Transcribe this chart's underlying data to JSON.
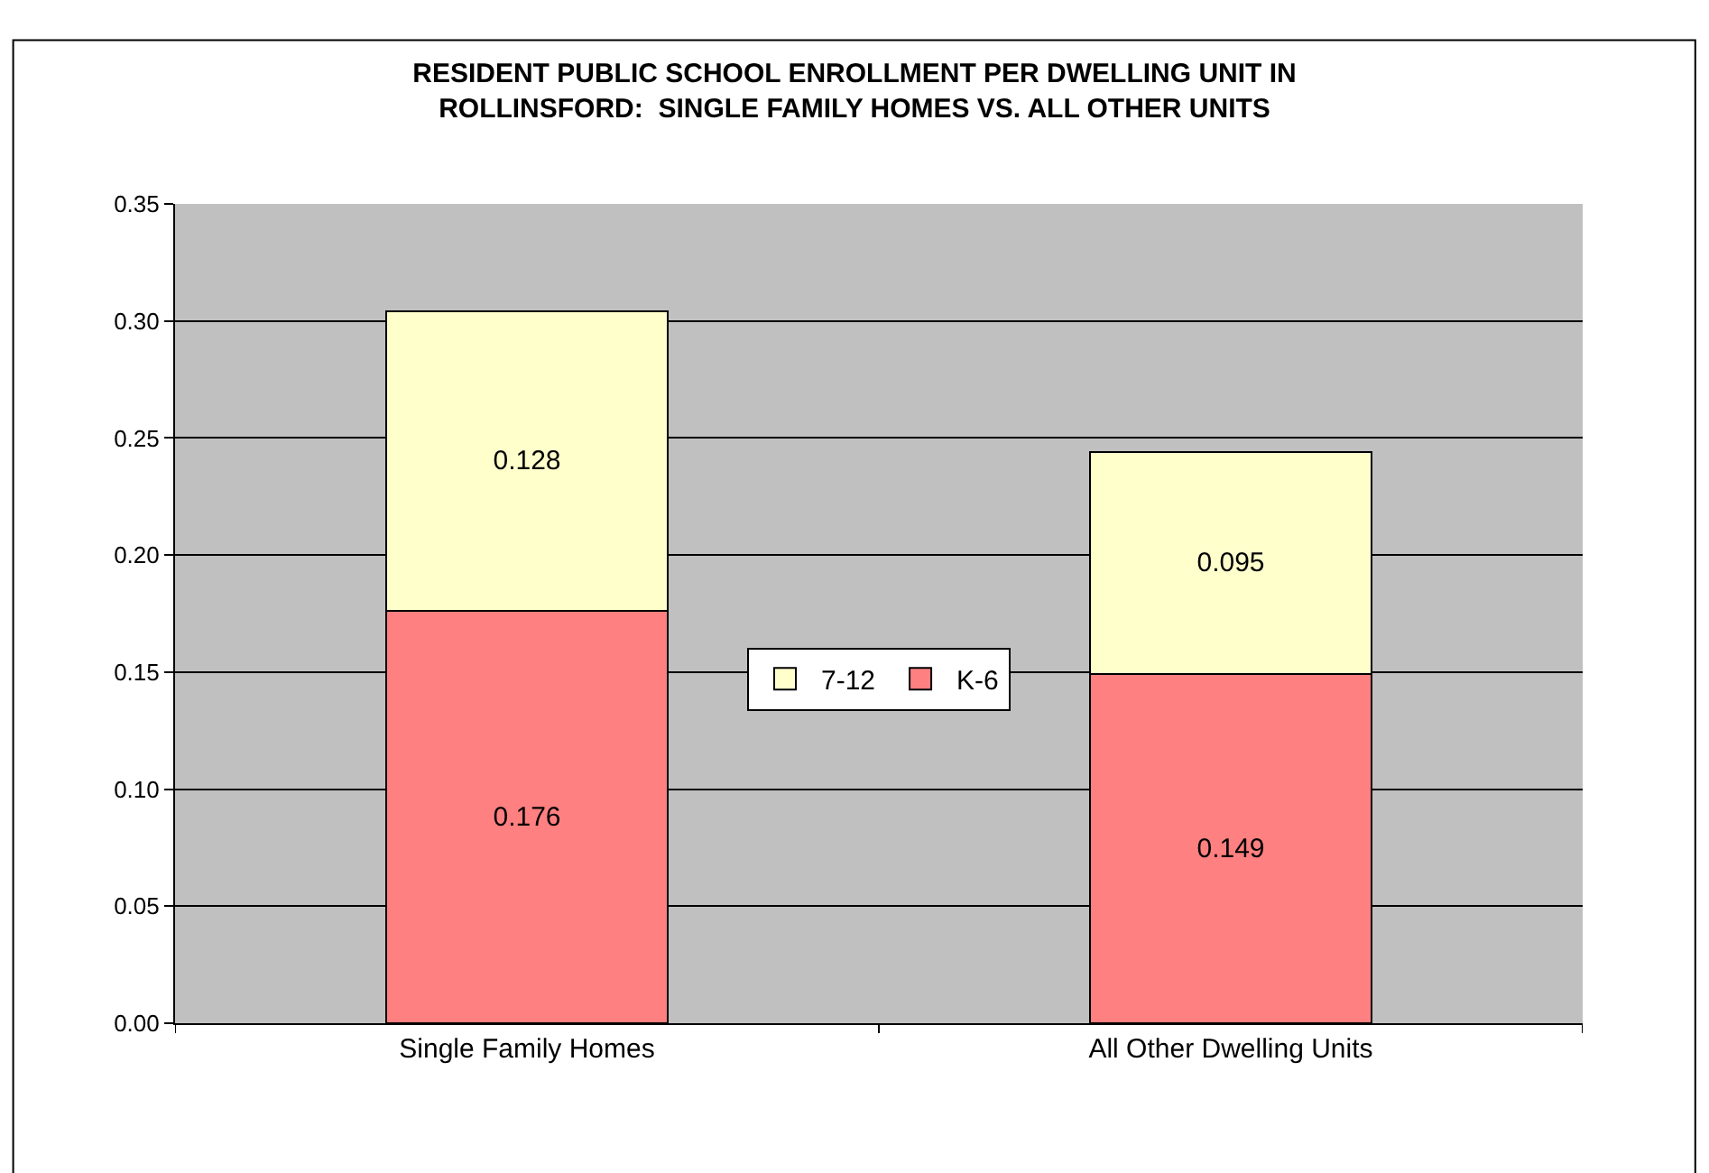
{
  "chart_data": {
    "type": "bar",
    "title": "RESIDENT PUBLIC SCHOOL ENROLLMENT PER DWELLING UNIT IN ROLLINSFORD:  SINGLE FAMILY HOMES VS. ALL OTHER UNITS",
    "categories": [
      "Single Family Homes",
      "All Other Dwelling Units"
    ],
    "series": [
      {
        "name": "K-6",
        "color": "#ff8080",
        "values": [
          0.176,
          0.149
        ]
      },
      {
        "name": "7-12",
        "color": "#ffffcc",
        "values": [
          0.128,
          0.095
        ]
      }
    ],
    "stacked": true,
    "data_labels": true,
    "ylim": [
      0,
      0.35
    ],
    "yticks": [
      {
        "value": 0,
        "label": "0.00"
      },
      {
        "value": 0.05,
        "label": "0.05"
      },
      {
        "value": 0.1,
        "label": "0.10"
      },
      {
        "value": 0.15,
        "label": "0.15"
      },
      {
        "value": 0.2,
        "label": "0.20"
      },
      {
        "value": 0.25,
        "label": "0.25"
      },
      {
        "value": 0.3,
        "label": "0.30"
      },
      {
        "value": 0.35,
        "label": "0.35"
      }
    ],
    "grid": "y",
    "legend": "center"
  }
}
